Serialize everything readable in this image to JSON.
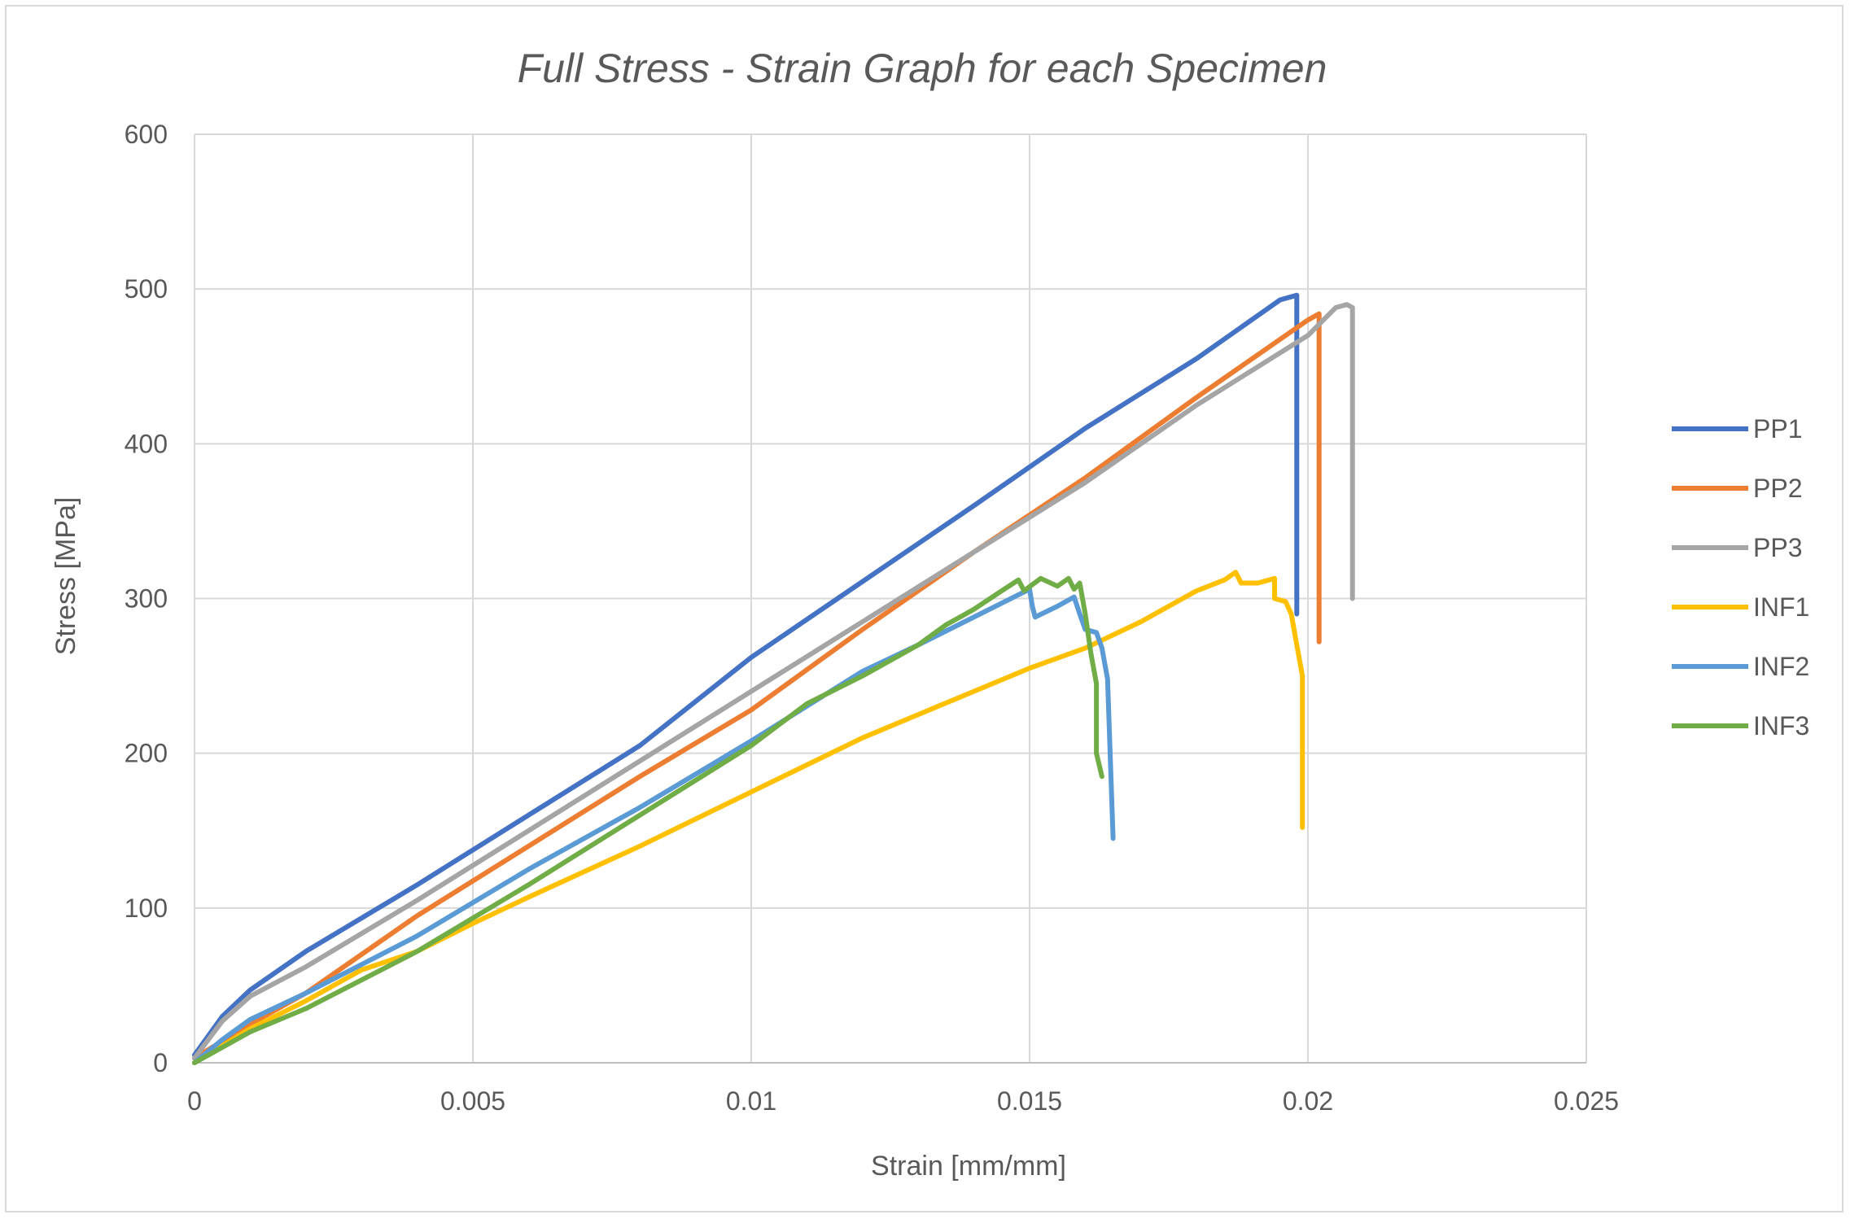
{
  "chart_data": {
    "type": "line",
    "title": "Full Stress - Strain Graph for each Specimen",
    "xlabel": "Strain [mm/mm]",
    "ylabel": "Stress [MPa]",
    "xlim": [
      0,
      0.025
    ],
    "ylim": [
      0,
      600
    ],
    "x_ticks": [
      0,
      0.005,
      0.01,
      0.015,
      0.02,
      0.025
    ],
    "x_tick_labels": [
      "0",
      "0.005",
      "0.01",
      "0.015",
      "0.02",
      "0.025"
    ],
    "y_ticks": [
      0,
      100,
      200,
      300,
      400,
      500,
      600
    ],
    "y_tick_labels": [
      "0",
      "100",
      "200",
      "300",
      "400",
      "500",
      "600"
    ],
    "grid": true,
    "legend_position": "right",
    "series": [
      {
        "name": "PP1",
        "color": "#4472C4",
        "points": [
          [
            0,
            5
          ],
          [
            0.0005,
            30
          ],
          [
            0.001,
            47
          ],
          [
            0.002,
            72
          ],
          [
            0.004,
            115
          ],
          [
            0.006,
            160
          ],
          [
            0.008,
            205
          ],
          [
            0.01,
            262
          ],
          [
            0.012,
            311
          ],
          [
            0.014,
            360
          ],
          [
            0.016,
            410
          ],
          [
            0.018,
            455
          ],
          [
            0.0195,
            493
          ],
          [
            0.0198,
            496
          ],
          [
            0.0198,
            290
          ]
        ]
      },
      {
        "name": "PP2",
        "color": "#ED7D31",
        "points": [
          [
            0,
            3
          ],
          [
            0.001,
            25
          ],
          [
            0.002,
            45
          ],
          [
            0.003,
            70
          ],
          [
            0.004,
            95
          ],
          [
            0.006,
            140
          ],
          [
            0.008,
            185
          ],
          [
            0.01,
            228
          ],
          [
            0.012,
            280
          ],
          [
            0.014,
            330
          ],
          [
            0.016,
            378
          ],
          [
            0.018,
            430
          ],
          [
            0.02,
            480
          ],
          [
            0.0202,
            484
          ],
          [
            0.0202,
            272
          ]
        ]
      },
      {
        "name": "PP3",
        "color": "#A5A5A5",
        "points": [
          [
            0,
            3
          ],
          [
            0.0005,
            27
          ],
          [
            0.001,
            43
          ],
          [
            0.002,
            62
          ],
          [
            0.004,
            105
          ],
          [
            0.006,
            150
          ],
          [
            0.008,
            195
          ],
          [
            0.01,
            240
          ],
          [
            0.012,
            285
          ],
          [
            0.014,
            330
          ],
          [
            0.016,
            375
          ],
          [
            0.018,
            425
          ],
          [
            0.02,
            470
          ],
          [
            0.0205,
            488
          ],
          [
            0.0207,
            490
          ],
          [
            0.0208,
            488
          ],
          [
            0.0208,
            300
          ]
        ]
      },
      {
        "name": "INF1",
        "color": "#FFC000",
        "points": [
          [
            0,
            0
          ],
          [
            0.001,
            22
          ],
          [
            0.002,
            40
          ],
          [
            0.003,
            60
          ],
          [
            0.004,
            72
          ],
          [
            0.005,
            90
          ],
          [
            0.006,
            107
          ],
          [
            0.008,
            140
          ],
          [
            0.01,
            175
          ],
          [
            0.012,
            210
          ],
          [
            0.013,
            225
          ],
          [
            0.014,
            240
          ],
          [
            0.015,
            255
          ],
          [
            0.016,
            268
          ],
          [
            0.017,
            285
          ],
          [
            0.018,
            305
          ],
          [
            0.0185,
            312
          ],
          [
            0.0187,
            317
          ],
          [
            0.0188,
            310
          ],
          [
            0.0191,
            310
          ],
          [
            0.0194,
            313
          ],
          [
            0.0194,
            300
          ],
          [
            0.0196,
            298
          ],
          [
            0.0197,
            290
          ],
          [
            0.0198,
            270
          ],
          [
            0.0199,
            250
          ],
          [
            0.0199,
            152
          ]
        ]
      },
      {
        "name": "INF2",
        "color": "#5B9BD5",
        "points": [
          [
            0,
            0
          ],
          [
            0.0005,
            15
          ],
          [
            0.001,
            28
          ],
          [
            0.002,
            45
          ],
          [
            0.004,
            82
          ],
          [
            0.006,
            125
          ],
          [
            0.008,
            165
          ],
          [
            0.01,
            208
          ],
          [
            0.012,
            253
          ],
          [
            0.013,
            270
          ],
          [
            0.014,
            288
          ],
          [
            0.015,
            306
          ],
          [
            0.01505,
            295
          ],
          [
            0.0151,
            288
          ],
          [
            0.0155,
            295
          ],
          [
            0.0158,
            301
          ],
          [
            0.0159,
            290
          ],
          [
            0.016,
            280
          ],
          [
            0.0162,
            278
          ],
          [
            0.0163,
            268
          ],
          [
            0.0164,
            248
          ],
          [
            0.0165,
            145
          ]
        ]
      },
      {
        "name": "INF3",
        "color": "#70AD47",
        "points": [
          [
            0,
            0
          ],
          [
            0.0005,
            10
          ],
          [
            0.001,
            20
          ],
          [
            0.002,
            35
          ],
          [
            0.004,
            72
          ],
          [
            0.006,
            115
          ],
          [
            0.008,
            160
          ],
          [
            0.01,
            205
          ],
          [
            0.011,
            232
          ],
          [
            0.012,
            250
          ],
          [
            0.013,
            270
          ],
          [
            0.0135,
            283
          ],
          [
            0.014,
            293
          ],
          [
            0.0145,
            305
          ],
          [
            0.0148,
            312
          ],
          [
            0.0149,
            305
          ],
          [
            0.0152,
            313
          ],
          [
            0.0155,
            308
          ],
          [
            0.0157,
            313
          ],
          [
            0.0158,
            306
          ],
          [
            0.0159,
            310
          ],
          [
            0.016,
            290
          ],
          [
            0.0161,
            265
          ],
          [
            0.0162,
            245
          ],
          [
            0.0162,
            200
          ],
          [
            0.0163,
            185
          ]
        ]
      }
    ]
  }
}
